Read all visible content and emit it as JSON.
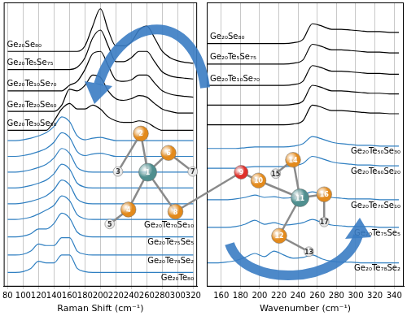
{
  "chart_data": [
    {
      "type": "line",
      "x_label": "Raman Shift (cm⁻¹)",
      "xlim": [
        75,
        325
      ],
      "xticks": [
        80,
        100,
        120,
        140,
        160,
        180,
        200,
        220,
        240,
        260,
        280,
        300,
        320
      ],
      "ylim": [
        0,
        360
      ],
      "grid": true,
      "tick_labels": "x",
      "x": [
        80,
        90,
        100,
        110,
        120,
        130,
        140,
        150,
        160,
        170,
        180,
        190,
        200,
        210,
        220,
        230,
        240,
        250,
        260,
        270,
        280,
        290,
        300,
        310,
        320
      ],
      "series": [
        {
          "name": "Ge₂₀Se₈₀",
          "color": "#000000",
          "values": [
            298,
            298,
            298,
            298,
            298,
            298,
            298,
            298,
            298,
            298,
            305,
            330,
            352,
            325,
            305,
            305,
            310,
            325,
            330,
            315,
            298,
            290,
            286,
            284,
            283
          ]
        },
        {
          "name": "Ge₂₀Te₅Se₇₅",
          "color": "#000000",
          "values": [
            275,
            275,
            275,
            275,
            275,
            275,
            275,
            275,
            275,
            278,
            290,
            315,
            325,
            305,
            285,
            285,
            290,
            298,
            298,
            285,
            272,
            267,
            265,
            264,
            263
          ]
        },
        {
          "name": "Ge₂₀Te₁₀Se₇₀",
          "color": "#000000",
          "values": [
            248,
            248,
            248,
            248,
            248,
            248,
            248,
            248,
            255,
            260,
            275,
            295,
            298,
            280,
            262,
            260,
            262,
            268,
            268,
            258,
            248,
            244,
            242,
            241,
            240
          ]
        },
        {
          "name": "Ge₂₀Te₂₀Se₆₀",
          "color": "#000000",
          "values": [
            222,
            222,
            222,
            222,
            222,
            222,
            222,
            230,
            250,
            248,
            255,
            268,
            265,
            248,
            238,
            236,
            238,
            242,
            240,
            232,
            225,
            222,
            220,
            220,
            220
          ]
        },
        {
          "name": "Ge₂₀Te₃₀Se₅₀",
          "color": "#000000",
          "values": [
            198,
            198,
            198,
            198,
            198,
            198,
            210,
            225,
            232,
            225,
            225,
            230,
            225,
            215,
            210,
            208,
            208,
            210,
            208,
            202,
            198,
            198,
            198,
            198,
            198
          ]
        },
        {
          "color": "#2f7fc1",
          "values": [
            185,
            185,
            186,
            188,
            191,
            195,
            203,
            215,
            209,
            191,
            186,
            188,
            189,
            187,
            185,
            185,
            185,
            185,
            185,
            185,
            185,
            185,
            185,
            185,
            185
          ]
        },
        {
          "color": "#2f7fc1",
          "values": [
            165,
            165,
            166,
            168,
            171,
            175,
            183,
            195,
            189,
            171,
            166,
            168,
            169,
            167,
            165,
            165,
            165,
            165,
            165,
            165,
            165,
            165,
            165,
            165,
            165
          ]
        },
        {
          "color": "#2f7fc1",
          "values": [
            145,
            145,
            146,
            148,
            151,
            155,
            163,
            175,
            169,
            151,
            146,
            145,
            145,
            145,
            145,
            145,
            145,
            145,
            145,
            145,
            145,
            145,
            145,
            145,
            145
          ]
        },
        {
          "color": "#2f7fc1",
          "values": [
            125,
            125,
            126,
            128,
            131,
            135,
            143,
            155,
            149,
            131,
            126,
            125,
            125,
            125,
            125,
            125,
            125,
            125,
            125,
            125,
            125,
            125,
            125,
            125,
            125
          ]
        },
        {
          "color": "#2f7fc1",
          "values": [
            105,
            105,
            106,
            108,
            111,
            115,
            123,
            135,
            129,
            111,
            106,
            105,
            105,
            105,
            105,
            105,
            105,
            105,
            105,
            105,
            105,
            105,
            105,
            105,
            105
          ]
        },
        {
          "name": "Ge₂₀Te₇₀Se₁₀",
          "color": "#2f7fc1",
          "values": [
            85,
            85,
            86,
            88,
            92,
            97,
            103,
            115,
            109,
            91,
            86,
            85,
            85,
            85,
            85,
            85,
            85,
            85,
            85,
            85,
            85,
            85,
            85,
            85,
            85
          ]
        },
        {
          "name": "Ge₂₀Te₇₅Se₅",
          "color": "#2f7fc1",
          "values": [
            63,
            63,
            64,
            67,
            73,
            73,
            80,
            93,
            87,
            69,
            64,
            63,
            63,
            63,
            63,
            63,
            63,
            63,
            63,
            63,
            63,
            63,
            63,
            63,
            63
          ]
        },
        {
          "name": "Ge₂₀Te₇₈Se₂",
          "color": "#2f7fc1",
          "values": [
            40,
            40,
            41,
            45,
            54,
            52,
            52,
            62,
            62,
            45,
            41,
            40,
            40,
            40,
            40,
            40,
            40,
            40,
            40,
            40,
            40,
            40,
            40,
            40,
            40
          ]
        },
        {
          "name": "Ge₂₀Te₈₀",
          "color": "#2f7fc1",
          "values": [
            18,
            18,
            19,
            23,
            32,
            30,
            30,
            40,
            40,
            23,
            19,
            18,
            18,
            18,
            18,
            18,
            18,
            18,
            18,
            18,
            18,
            18,
            18,
            18,
            18
          ]
        }
      ]
    },
    {
      "type": "line",
      "x_label": "Wavenumber (cm⁻¹)",
      "xlim": [
        145,
        350
      ],
      "xticks": [
        160,
        180,
        200,
        220,
        240,
        260,
        280,
        300,
        320,
        340
      ],
      "ylim": [
        0,
        360
      ],
      "grid": true,
      "tick_labels": "x",
      "x": [
        145,
        155,
        165,
        175,
        185,
        195,
        205,
        215,
        225,
        235,
        245,
        255,
        265,
        275,
        285,
        295,
        305,
        315,
        325,
        335,
        345
      ],
      "series": [
        {
          "name": "Ge₂₀Se₈₀",
          "color": "#000000",
          "values": [
            308,
            308,
            308,
            308,
            308,
            308,
            308,
            308,
            308,
            309,
            313,
            333,
            330,
            326,
            326,
            325,
            324,
            323,
            323,
            322,
            322
          ]
        },
        {
          "name": "Ge₂₀Te₅Se₇₅",
          "color": "#000000",
          "values": [
            282,
            282,
            282,
            282,
            282,
            282,
            282,
            282,
            282,
            283,
            287,
            307,
            304,
            300,
            300,
            299,
            298,
            297,
            297,
            296,
            296
          ]
        },
        {
          "name": "Ge₂₀Te₁₀Se₇₀",
          "color": "#000000",
          "values": [
            255,
            255,
            255,
            255,
            255,
            255,
            255,
            255,
            255,
            256,
            260,
            280,
            277,
            273,
            273,
            272,
            271,
            270,
            270,
            269,
            269
          ]
        },
        {
          "color": "#000000",
          "values": [
            230,
            230,
            230,
            230,
            230,
            230,
            230,
            230,
            230,
            231,
            235,
            255,
            252,
            248,
            248,
            247,
            246,
            245,
            245,
            244,
            244
          ]
        },
        {
          "color": "#000000",
          "values": [
            205,
            205,
            205,
            205,
            205,
            205,
            205,
            205,
            205,
            206,
            210,
            230,
            227,
            223,
            223,
            222,
            221,
            220,
            220,
            219,
            219
          ]
        },
        {
          "name": "Ge₂₀Te₅₀Se₃₀",
          "color": "#2f7fc1",
          "values": [
            175,
            175,
            175,
            175,
            176,
            177,
            177,
            177,
            177,
            178,
            181,
            190,
            187,
            183,
            181,
            180,
            179,
            179,
            178,
            178,
            178
          ]
        },
        {
          "name": "Ge₂₀Te₆₀Se₂₀",
          "color": "#2f7fc1",
          "values": [
            150,
            150,
            150,
            150,
            151,
            152,
            152,
            152,
            152,
            153,
            156,
            165,
            162,
            158,
            156,
            155,
            154,
            154,
            153,
            153,
            153
          ]
        },
        {
          "name": "Ge₂₀Te₇₀Se₁₀",
          "color": "#2f7fc1",
          "values": [
            110,
            110,
            110,
            111,
            113,
            116,
            113,
            114,
            112,
            113,
            116,
            120,
            116,
            113,
            112,
            111,
            111,
            111,
            110,
            110,
            110
          ]
        },
        {
          "name": "Ge₂₀Te₇₅Se₅",
          "color": "#2f7fc1",
          "values": [
            75,
            75,
            75,
            76,
            79,
            84,
            79,
            81,
            78,
            79,
            81,
            85,
            81,
            78,
            77,
            76,
            76,
            76,
            75,
            75,
            75
          ]
        },
        {
          "name": "Ge₂₀Te₇₈Se₂",
          "color": "#2f7fc1",
          "values": [
            30,
            30,
            31,
            33,
            37,
            42,
            38,
            45,
            40,
            36,
            37,
            40,
            35,
            32,
            31,
            31,
            30,
            30,
            30,
            30,
            30
          ]
        }
      ]
    }
  ],
  "molecule": {
    "atoms": [
      {
        "label": "1",
        "color": "#4f8f8f"
      },
      {
        "label": "2",
        "color": "#e38a1c"
      },
      {
        "label": "3",
        "color": "#e6e6e6"
      },
      {
        "label": "4",
        "color": "#e38a1c"
      },
      {
        "label": "5",
        "color": "#e6e6e6"
      },
      {
        "label": "6",
        "color": "#e38a1c"
      },
      {
        "label": "7",
        "color": "#e6e6e6"
      },
      {
        "label": "8",
        "color": "#e38a1c"
      },
      {
        "label": "9",
        "color": "#e0302a"
      },
      {
        "label": "10",
        "color": "#e38a1c"
      },
      {
        "label": "11",
        "color": "#4f8f8f"
      },
      {
        "label": "12",
        "color": "#e38a1c"
      },
      {
        "label": "13",
        "color": "#e6e6e6"
      },
      {
        "label": "14",
        "color": "#e38a1c"
      },
      {
        "label": "15",
        "color": "#e6e6e6"
      },
      {
        "label": "16",
        "color": "#e38a1c"
      },
      {
        "label": "17",
        "color": "#e6e6e6"
      }
    ],
    "bonds": [
      [
        1,
        2
      ],
      [
        2,
        3
      ],
      [
        1,
        4
      ],
      [
        4,
        5
      ],
      [
        1,
        6
      ],
      [
        6,
        7
      ],
      [
        1,
        8
      ],
      [
        8,
        9
      ],
      [
        9,
        10
      ],
      [
        10,
        11
      ],
      [
        11,
        14
      ],
      [
        14,
        15
      ],
      [
        11,
        16
      ],
      [
        16,
        17
      ],
      [
        11,
        12
      ],
      [
        12,
        13
      ]
    ]
  }
}
